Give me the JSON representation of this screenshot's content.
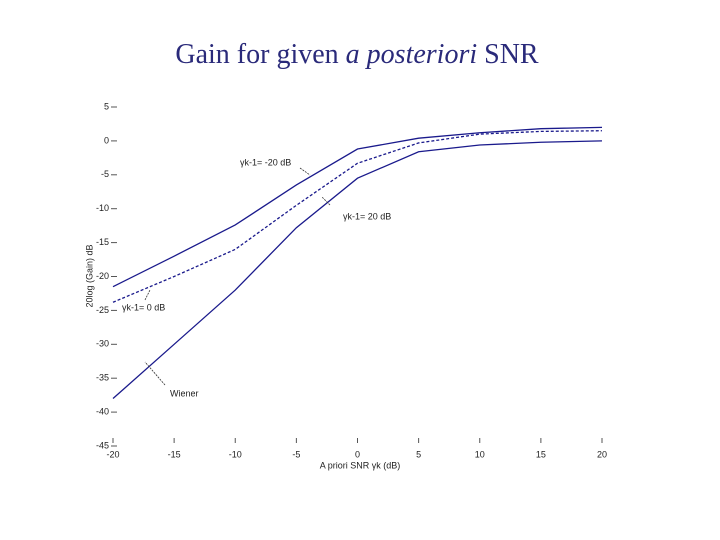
{
  "chart_data": {
    "type": "line",
    "title": [
      "Gain for given ",
      "a posteriori",
      " SNR"
    ],
    "x_label": "A priori SNR γk (dB)",
    "y_label": "20log (Gain) dB",
    "x": [
      -20,
      -15,
      -10,
      -5,
      0,
      5,
      10,
      15,
      20
    ],
    "series": [
      {
        "color": "#1a1a8c",
        "dash": false,
        "values": [
          -21.5,
          -17,
          -12.4,
          -6.5,
          -1.2,
          0.4,
          1.2,
          1.8,
          2
        ]
      },
      {
        "color": "#1a1a8c",
        "dash": true,
        "values": [
          -23.8,
          -20,
          -16,
          -9.5,
          -3.3,
          -0.3,
          1,
          1.4,
          1.5
        ]
      },
      {
        "color": "#1a1a8c",
        "dash": false,
        "values": [
          -38,
          -30,
          -22,
          -12.8,
          -5.5,
          -1.6,
          -0.6,
          -0.2,
          0
        ]
      }
    ],
    "annotations": [
      "γk-1= -20 dB",
      "γk-1= 20 dB",
      "γk-1= 0 dB",
      "Wiener"
    ],
    "xlim": [
      -20,
      20
    ],
    "ylim": [
      -45,
      5
    ],
    "xticks": [
      -20,
      -15,
      -10,
      -5,
      0,
      5,
      10,
      15,
      20
    ],
    "yticks": [
      5,
      0,
      -5,
      -10,
      -15,
      -20,
      -25,
      -30,
      -35,
      -40,
      -45
    ]
  }
}
